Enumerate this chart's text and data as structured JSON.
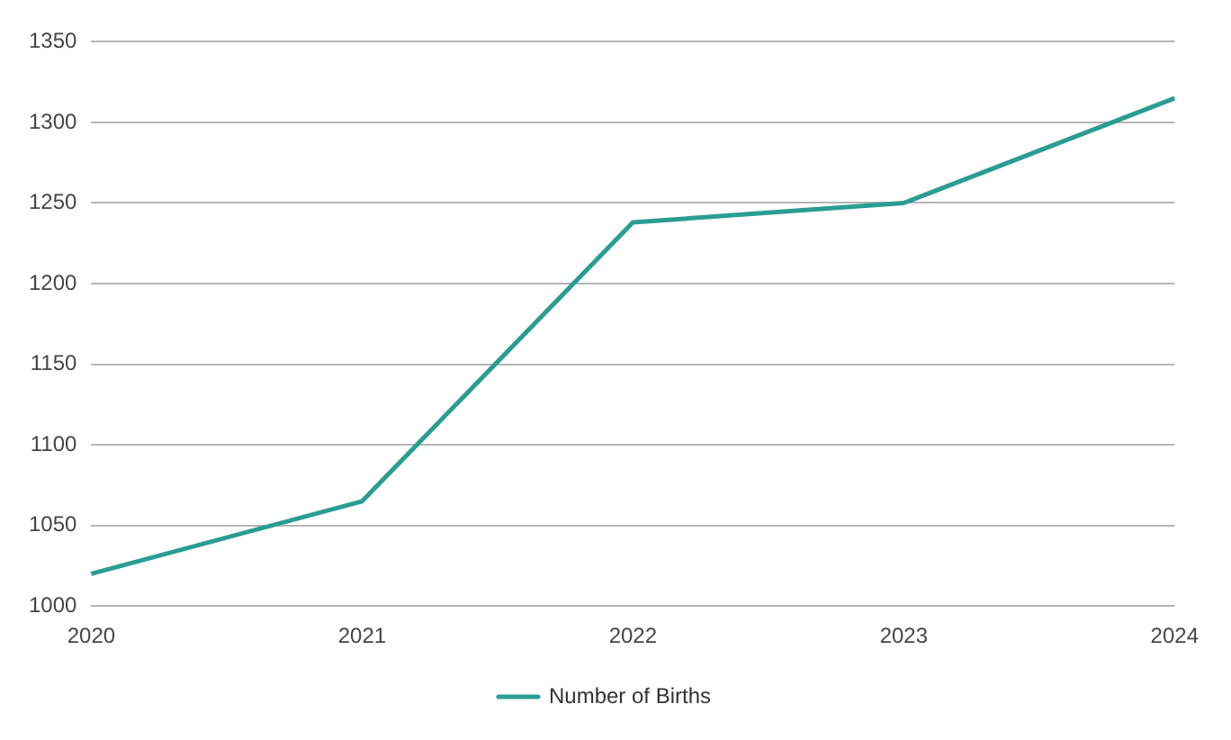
{
  "chart_data": {
    "type": "line",
    "categories": [
      "2020",
      "2021",
      "2022",
      "2023",
      "2024"
    ],
    "series": [
      {
        "name": "Number of Births",
        "color": "#2a9d92",
        "values": [
          1020,
          1065,
          1238,
          1250,
          1315
        ]
      }
    ],
    "ylim": [
      1000,
      1350
    ],
    "yticks": [
      1000,
      1050,
      1100,
      1150,
      1200,
      1250,
      1300,
      1350
    ],
    "grid": "y",
    "legend": "bottom",
    "marker": "none"
  }
}
